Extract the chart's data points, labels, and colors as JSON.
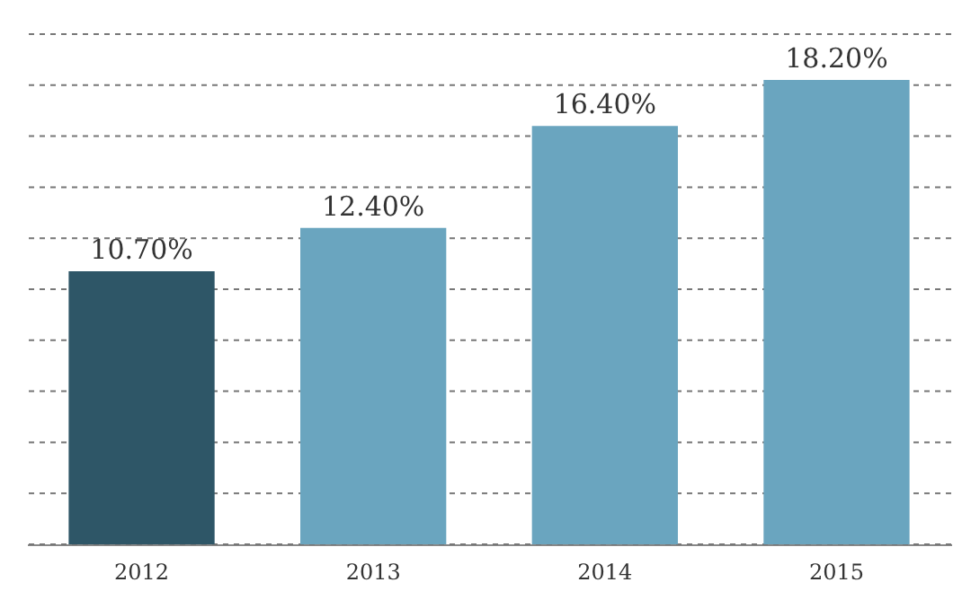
{
  "chart_data": {
    "type": "bar",
    "categories": [
      "2012",
      "2013",
      "2014",
      "2015"
    ],
    "values": [
      10.7,
      12.4,
      16.4,
      18.2
    ],
    "colors": [
      "#2e5667",
      "#6aa5bf",
      "#6aa5bf",
      "#6aa5bf"
    ],
    "value_labels": [
      "10.70%",
      "12.40%",
      "16.40%",
      "18.20%"
    ],
    "ylim": [
      0,
      20
    ],
    "yticks": [
      {
        "value": 0,
        "label": null
      },
      {
        "value": 2,
        "label": null
      },
      {
        "value": 4,
        "label": null
      },
      {
        "value": 6,
        "label": null
      },
      {
        "value": 8,
        "label": null
      },
      {
        "value": 10,
        "label": null
      },
      {
        "value": 12,
        "label": null
      },
      {
        "value": 14,
        "label": null
      },
      {
        "value": 16,
        "label": null
      },
      {
        "value": 18,
        "label": null
      },
      {
        "value": 20,
        "label": null
      }
    ],
    "grid": "y",
    "tick_labels": "x"
  }
}
